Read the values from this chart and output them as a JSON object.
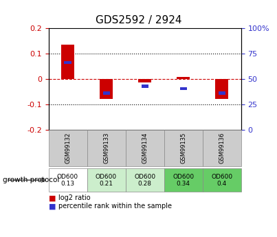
{
  "title": "GDS2592 / 2924",
  "samples": [
    "GSM99132",
    "GSM99133",
    "GSM99134",
    "GSM99135",
    "GSM99136"
  ],
  "log2_ratio": [
    0.135,
    -0.078,
    -0.012,
    0.008,
    -0.078
  ],
  "percentile_rank_left": [
    0.065,
    -0.055,
    -0.028,
    -0.038,
    -0.055
  ],
  "ylim_left": [
    -0.2,
    0.2
  ],
  "ylim_right": [
    0,
    100
  ],
  "yticks_left": [
    -0.2,
    -0.1,
    0.0,
    0.1,
    0.2
  ],
  "yticks_right": [
    0,
    25,
    50,
    75,
    100
  ],
  "growth_protocol_values": [
    "OD600\n0.13",
    "OD600\n0.21",
    "OD600\n0.28",
    "OD600\n0.34",
    "OD600\n0.4"
  ],
  "cell_colors": [
    "#ffffff",
    "#cceecc",
    "#cceecc",
    "#66cc66",
    "#66cc66"
  ],
  "bar_color_red": "#cc0000",
  "bar_color_blue": "#3333cc",
  "dashed_zero_color": "#cc0000",
  "dotted_line_color": "#000000",
  "bg_color": "#ffffff",
  "left_tick_color": "#cc0000",
  "right_tick_color": "#3333cc",
  "bar_width": 0.35,
  "growth_protocol_label": "growth protocol"
}
